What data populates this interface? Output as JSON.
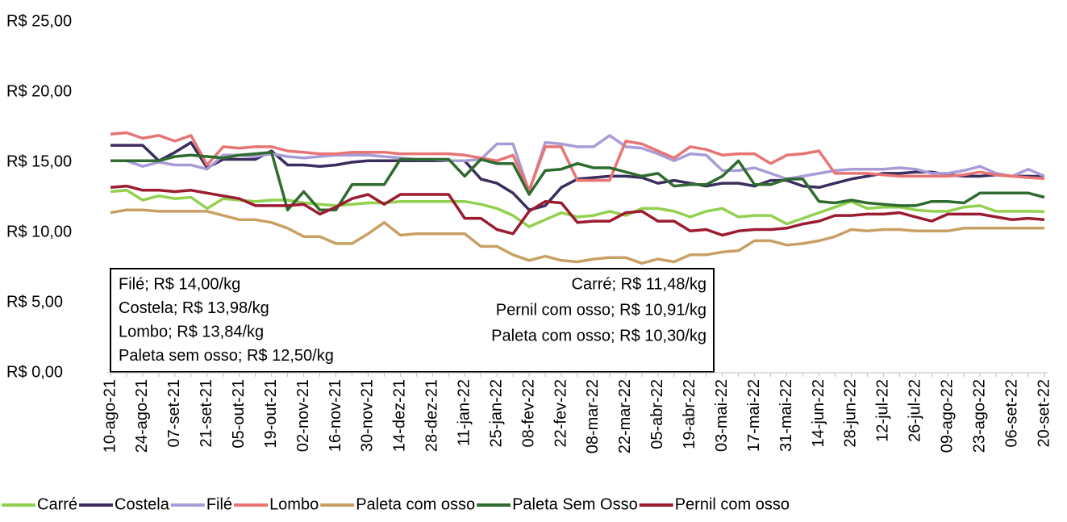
{
  "chart_data": {
    "type": "line",
    "categories": [
      "10-ago-21",
      null,
      "24-ago-21",
      null,
      "07-set-21",
      null,
      "21-set-21",
      null,
      "05-out-21",
      null,
      "19-out-21",
      null,
      "02-nov-21",
      null,
      "16-nov-21",
      null,
      "30-nov-21",
      null,
      "14-dez-21",
      null,
      "28-dez-21",
      null,
      "11-jan-22",
      null,
      "25-jan-22",
      null,
      "08-fev-22",
      null,
      "22-fev-22",
      null,
      "08-mar-22",
      null,
      "22-mar-22",
      null,
      "05-abr-22",
      null,
      "19-abr-22",
      null,
      "03-mai-22",
      null,
      "17-mai-22",
      null,
      "31-mai-22",
      null,
      "14-jun-22",
      null,
      "28-jun-22",
      null,
      "12-jul-22",
      null,
      "26-jul-22",
      null,
      "09-ago-22",
      null,
      "23-ago-22",
      null,
      "06-set-22",
      null,
      "20-set-22"
    ],
    "series": [
      {
        "name": "Carré",
        "color": "#92d050",
        "values": [
          12.9,
          13.0,
          12.3,
          12.6,
          12.4,
          12.5,
          11.7,
          12.4,
          12.3,
          12.2,
          12.3,
          12.3,
          12.1,
          12.0,
          11.9,
          12.0,
          12.1,
          12.1,
          12.2,
          12.2,
          12.2,
          12.2,
          12.2,
          12.0,
          11.7,
          11.2,
          10.4,
          10.9,
          11.4,
          11.1,
          11.2,
          11.5,
          11.2,
          11.7,
          11.7,
          11.5,
          11.1,
          11.5,
          11.7,
          11.1,
          11.2,
          11.2,
          10.6,
          11.0,
          11.4,
          11.8,
          12.2,
          11.7,
          11.8,
          11.8,
          11.6,
          11.5,
          11.5,
          11.8,
          11.9,
          11.5,
          11.5,
          11.5,
          11.48
        ]
      },
      {
        "name": "Costela",
        "color": "#3b2d5e",
        "values": [
          16.2,
          16.2,
          16.2,
          15.1,
          15.7,
          16.4,
          14.6,
          15.2,
          15.2,
          15.2,
          15.8,
          14.8,
          14.8,
          14.7,
          14.8,
          15.0,
          15.1,
          15.1,
          15.1,
          15.1,
          15.1,
          15.1,
          15.1,
          13.8,
          13.5,
          12.8,
          11.6,
          11.9,
          13.2,
          13.8,
          13.9,
          14.0,
          14.0,
          13.9,
          13.5,
          13.7,
          13.5,
          13.3,
          13.5,
          13.5,
          13.3,
          13.7,
          13.7,
          13.3,
          13.2,
          13.5,
          13.8,
          14.0,
          14.2,
          14.2,
          14.3,
          14.3,
          14.1,
          14.0,
          14.0,
          14.1,
          14.0,
          14.0,
          13.98
        ]
      },
      {
        "name": "Filé",
        "color": "#a99bd6",
        "values": [
          15.1,
          15.1,
          14.7,
          15.0,
          14.8,
          14.8,
          14.5,
          15.5,
          15.5,
          15.4,
          15.6,
          15.4,
          15.3,
          15.4,
          15.5,
          15.5,
          15.5,
          15.4,
          15.3,
          15.2,
          15.2,
          15.1,
          15.1,
          15.2,
          16.3,
          16.3,
          12.9,
          16.4,
          16.3,
          16.1,
          16.1,
          16.9,
          16.1,
          16.0,
          15.6,
          15.1,
          15.6,
          15.5,
          14.4,
          14.4,
          14.6,
          14.2,
          13.8,
          14.0,
          14.2,
          14.4,
          14.5,
          14.5,
          14.5,
          14.6,
          14.5,
          14.2,
          14.2,
          14.4,
          14.7,
          14.2,
          14.0,
          14.5,
          14.0
        ]
      },
      {
        "name": "Lombo",
        "color": "#e87474",
        "values": [
          17.0,
          17.1,
          16.7,
          16.9,
          16.5,
          16.9,
          14.8,
          16.1,
          16.0,
          16.1,
          16.1,
          15.8,
          15.7,
          15.6,
          15.6,
          15.7,
          15.7,
          15.7,
          15.6,
          15.6,
          15.6,
          15.6,
          15.5,
          15.3,
          15.1,
          15.5,
          13.0,
          16.1,
          16.1,
          13.7,
          13.7,
          13.7,
          16.5,
          16.3,
          15.8,
          15.3,
          16.1,
          15.9,
          15.5,
          15.6,
          15.6,
          14.9,
          15.5,
          15.6,
          15.8,
          14.2,
          14.2,
          14.2,
          14.1,
          14.0,
          14.0,
          14.0,
          14.0,
          14.1,
          14.3,
          14.1,
          14.0,
          13.9,
          13.84
        ]
      },
      {
        "name": "Paleta com osso",
        "color": "#c9a064",
        "values": [
          11.4,
          11.6,
          11.6,
          11.5,
          11.5,
          11.5,
          11.5,
          11.2,
          10.9,
          10.9,
          10.7,
          10.3,
          9.7,
          9.7,
          9.2,
          9.2,
          9.9,
          10.7,
          9.8,
          9.9,
          9.9,
          9.9,
          9.9,
          9.0,
          9.0,
          8.4,
          8.0,
          8.3,
          8.0,
          7.9,
          8.1,
          8.2,
          8.2,
          7.8,
          8.1,
          7.9,
          8.4,
          8.4,
          8.6,
          8.7,
          9.4,
          9.4,
          9.1,
          9.2,
          9.4,
          9.7,
          10.2,
          10.1,
          10.2,
          10.2,
          10.1,
          10.1,
          10.1,
          10.3,
          10.3,
          10.3,
          10.3,
          10.3,
          10.3
        ]
      },
      {
        "name": "Paleta Sem Osso",
        "color": "#2f6b2f",
        "values": [
          15.1,
          15.1,
          15.1,
          15.1,
          15.4,
          15.5,
          15.4,
          15.3,
          15.5,
          15.6,
          15.7,
          11.6,
          12.9,
          11.6,
          11.6,
          13.4,
          13.4,
          13.4,
          15.2,
          15.2,
          15.2,
          15.2,
          14.0,
          15.2,
          14.9,
          14.9,
          12.7,
          14.4,
          14.5,
          14.9,
          14.6,
          14.6,
          14.3,
          14.0,
          14.2,
          13.3,
          13.4,
          13.4,
          14.0,
          15.1,
          13.4,
          13.4,
          13.8,
          13.8,
          12.2,
          12.1,
          12.3,
          12.1,
          12.0,
          11.9,
          11.9,
          12.2,
          12.2,
          12.1,
          12.8,
          12.8,
          12.8,
          12.8,
          12.5
        ]
      },
      {
        "name": "Pernil com osso",
        "color": "#9b1c31",
        "values": [
          13.2,
          13.3,
          13.0,
          13.0,
          12.9,
          13.0,
          12.8,
          12.6,
          12.4,
          11.9,
          11.9,
          11.9,
          12.0,
          11.3,
          11.8,
          12.4,
          12.7,
          12.0,
          12.7,
          12.7,
          12.7,
          12.7,
          11.0,
          11.0,
          10.2,
          9.9,
          11.5,
          12.2,
          12.1,
          10.7,
          10.8,
          10.8,
          11.4,
          11.5,
          10.8,
          10.8,
          10.1,
          10.2,
          9.8,
          10.1,
          10.2,
          10.2,
          10.3,
          10.6,
          10.8,
          11.2,
          11.2,
          11.3,
          11.3,
          11.4,
          11.1,
          10.8,
          11.3,
          11.3,
          11.3,
          11.1,
          10.9,
          11.0,
          10.91
        ]
      }
    ],
    "ylim": [
      0,
      25
    ],
    "yticks": [
      {
        "value": 0,
        "label": "R$ 0,00"
      },
      {
        "value": 5,
        "label": "R$ 5,00"
      },
      {
        "value": 10,
        "label": "R$ 10,00"
      },
      {
        "value": 15,
        "label": "R$ 15,00"
      },
      {
        "value": 20,
        "label": "R$ 20,00"
      },
      {
        "value": 25,
        "label": "R$ 25,00"
      }
    ],
    "grid": false,
    "legend": "bottom",
    "annotations": {
      "left": [
        "Filé; R$ 14,00/kg",
        "Costela; R$ 13,98/kg",
        "Lombo; R$ 13,84/kg",
        "Paleta sem osso; R$ 12,50/kg"
      ],
      "right": [
        "Carré; R$ 11,48/kg",
        "Pernil com osso; R$ 10,91/kg",
        "Paleta com osso; R$ 10,30/kg"
      ]
    }
  }
}
